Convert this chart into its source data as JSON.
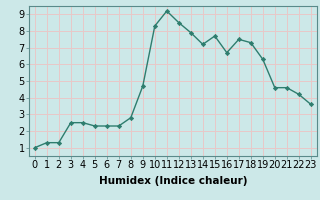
{
  "x": [
    0,
    1,
    2,
    3,
    4,
    5,
    6,
    7,
    8,
    9,
    10,
    11,
    12,
    13,
    14,
    15,
    16,
    17,
    18,
    19,
    20,
    21,
    22,
    23
  ],
  "y": [
    1.0,
    1.3,
    1.3,
    2.5,
    2.5,
    2.3,
    2.3,
    2.3,
    2.8,
    4.7,
    8.3,
    9.2,
    8.5,
    7.9,
    7.2,
    7.7,
    6.7,
    7.5,
    7.3,
    6.3,
    4.6,
    4.6,
    4.2,
    3.6
  ],
  "line_color": "#2e7d6e",
  "marker": "D",
  "marker_size": 2.2,
  "bg_color": "#cce8e8",
  "grid_color": "#e8c8c8",
  "xlabel": "Humidex (Indice chaleur)",
  "xlabel_fontsize": 7.5,
  "xlabel_fontweight": "bold",
  "xlim": [
    -0.5,
    23.5
  ],
  "ylim": [
    0.5,
    9.5
  ],
  "xtick_labels": [
    "0",
    "1",
    "2",
    "3",
    "4",
    "5",
    "6",
    "7",
    "8",
    "9",
    "10",
    "11",
    "12",
    "13",
    "14",
    "15",
    "16",
    "17",
    "18",
    "19",
    "20",
    "21",
    "22",
    "23"
  ],
  "ytick_vals": [
    1,
    2,
    3,
    4,
    5,
    6,
    7,
    8,
    9
  ],
  "tick_fontsize": 7.0,
  "spine_color": "#5a8a8a"
}
